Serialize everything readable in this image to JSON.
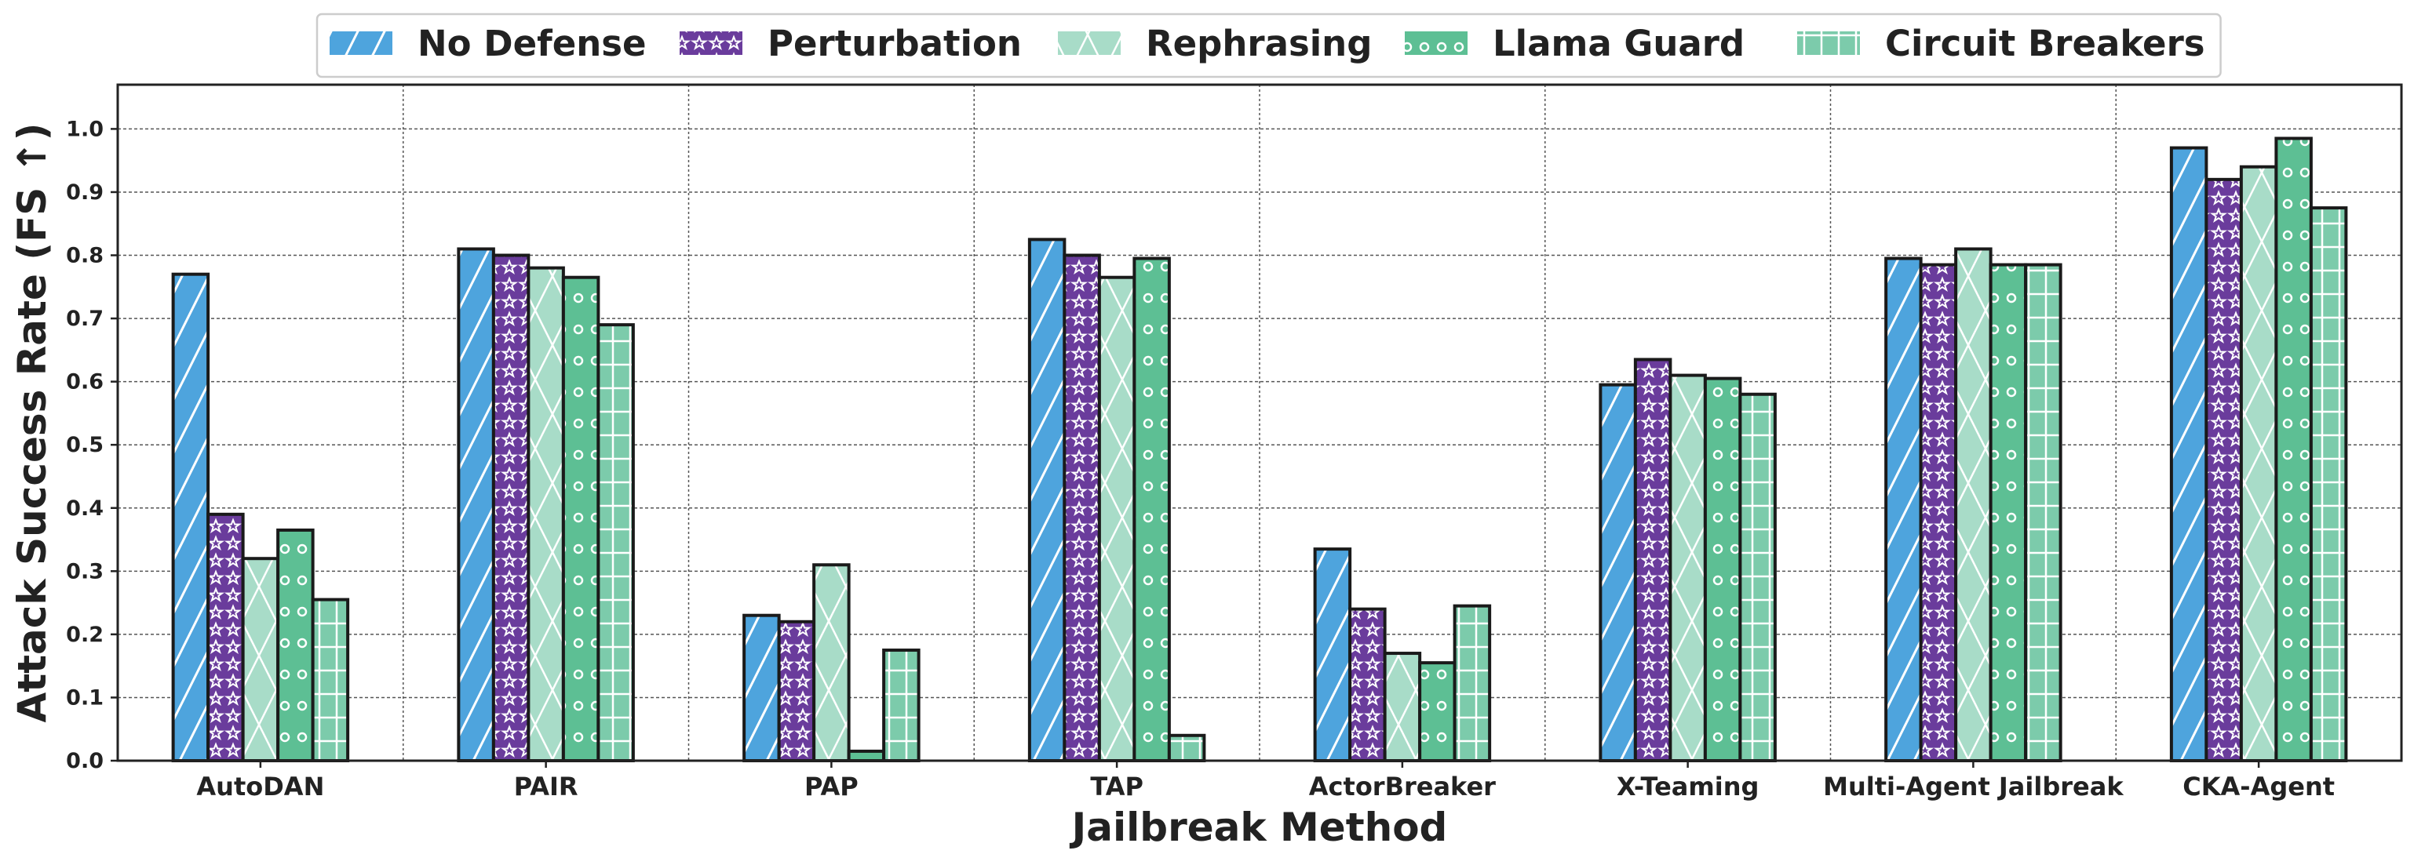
{
  "chart_data": {
    "type": "bar",
    "xlabel": "Jailbreak Method",
    "ylabel": "Attack Success Rate (FS ↑)",
    "ylim": [
      0,
      1.07
    ],
    "yticks": [
      "0.0",
      "0.1",
      "0.2",
      "0.3",
      "0.4",
      "0.5",
      "0.6",
      "0.7",
      "0.8",
      "0.9",
      "1.0"
    ],
    "grid": true,
    "legend_position": "top-center",
    "categories": [
      "AutoDAN",
      "PAIR",
      "PAP",
      "TAP",
      "ActorBreaker",
      "X-Teaming",
      "Multi-Agent Jailbreak",
      "CKA-Agent"
    ],
    "series": [
      {
        "name": "No Defense",
        "color": "#4ea4dd",
        "pattern": "diagonal-lines",
        "values": [
          0.77,
          0.81,
          0.23,
          0.825,
          0.335,
          0.595,
          0.795,
          0.97
        ]
      },
      {
        "name": "Perturbation",
        "color": "#6a3c9c",
        "pattern": "stars",
        "values": [
          0.39,
          0.8,
          0.22,
          0.8,
          0.24,
          0.635,
          0.785,
          0.92
        ]
      },
      {
        "name": "Rephrasing",
        "color": "#a8dcc8",
        "pattern": "x-cross",
        "values": [
          0.32,
          0.78,
          0.31,
          0.765,
          0.17,
          0.61,
          0.81,
          0.94
        ]
      },
      {
        "name": "Llama Guard",
        "color": "#5dbf94",
        "pattern": "circles",
        "values": [
          0.365,
          0.765,
          0.015,
          0.795,
          0.155,
          0.605,
          0.785,
          0.985
        ]
      },
      {
        "name": "Circuit Breakers",
        "color": "#7ccbab",
        "pattern": "grid",
        "values": [
          0.255,
          0.69,
          0.175,
          0.04,
          0.245,
          0.58,
          0.785,
          0.875
        ]
      }
    ]
  }
}
